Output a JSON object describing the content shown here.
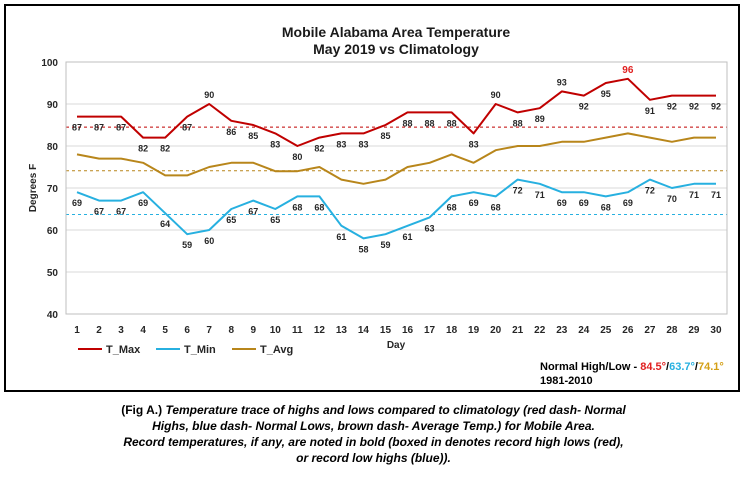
{
  "chart_data": {
    "type": "line",
    "title": "Mobile Alabama Area Temperature",
    "subtitle": "May 2019 vs Climatology",
    "xlabel": "Day",
    "ylabel": "Degrees F",
    "ylim": [
      40,
      100
    ],
    "yticks": [
      "40",
      "50",
      "60",
      "70",
      "80",
      "90",
      "100"
    ],
    "x": [
      1,
      2,
      3,
      4,
      5,
      6,
      7,
      8,
      9,
      10,
      11,
      12,
      13,
      14,
      15,
      16,
      17,
      18,
      19,
      20,
      21,
      22,
      23,
      24,
      25,
      26,
      27,
      28,
      29,
      30
    ],
    "grid": true,
    "series": [
      {
        "name": "T_Max",
        "color": "#c00000",
        "values": [
          87,
          87,
          87,
          82,
          82,
          87,
          90,
          86,
          85,
          83,
          80,
          82,
          83,
          83,
          85,
          88,
          88,
          88,
          83,
          90,
          88,
          89,
          93,
          92,
          95,
          96,
          91,
          92,
          92,
          92
        ]
      },
      {
        "name": "T_Min",
        "color": "#27b0e0",
        "values": [
          69,
          67,
          67,
          69,
          64,
          59,
          60,
          65,
          67,
          65,
          68,
          68,
          61,
          58,
          59,
          61,
          63,
          68,
          69,
          68,
          72,
          71,
          69,
          69,
          68,
          69,
          72,
          70,
          71,
          71
        ]
      },
      {
        "name": "T_Avg",
        "color": "#b8861b",
        "values": [
          78,
          77,
          77,
          76,
          73,
          73,
          75,
          76,
          76,
          74,
          74,
          75,
          72,
          71,
          72,
          75,
          76,
          78,
          76,
          79,
          80,
          80,
          81,
          81,
          82,
          83,
          82,
          81,
          82,
          82
        ]
      }
    ],
    "reference_lines": [
      {
        "value": 84.5,
        "color": "#c00000"
      },
      {
        "value": 63.7,
        "color": "#27b0e0"
      },
      {
        "value": 74.1,
        "color": "#b8861b"
      }
    ],
    "record_high_day": 26,
    "legend": {
      "position": "bottom-left",
      "items": [
        "T_Max",
        "T_Min",
        "T_Avg"
      ]
    },
    "normals": {
      "label": "Normal High/Low - ",
      "high": "84.5°",
      "sep1": "/",
      "low": "63.7°",
      "sep2": "/",
      "avg": "74.1°",
      "period": "1981-2010",
      "high_color": "#e02020",
      "low_color": "#27b0e0",
      "avg_color": "#d4a017"
    }
  },
  "caption": {
    "prefix": "(Fig A.) ",
    "line1": "Temperature trace of highs and lows compared to climatology (red dash- Normal",
    "line2": "Highs, blue dash- Normal Lows, brown dash- Average Temp.) for Mobile Area.",
    "line3": "Record temperatures, if any, are noted in bold (boxed in denotes record high lows (red),",
    "line4": "or record low highs (blue))."
  }
}
